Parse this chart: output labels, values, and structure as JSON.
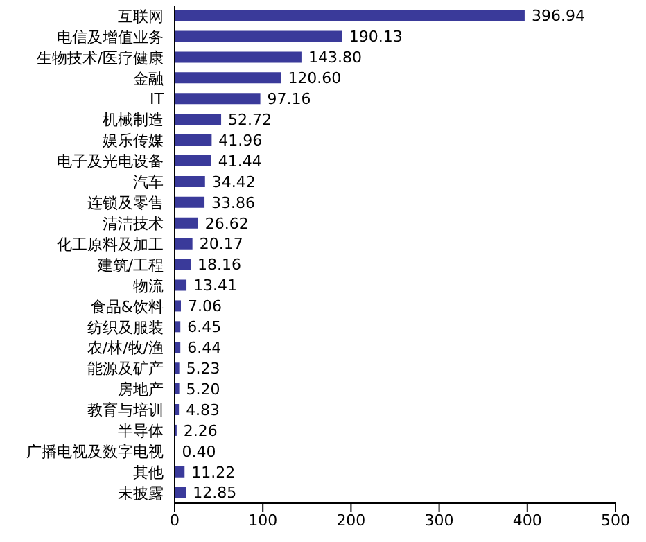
{
  "chart_data": {
    "type": "bar",
    "orientation": "horizontal",
    "categories": [
      "互联网",
      "电信及增值业务",
      "生物技术/医疗健康",
      "金融",
      "IT",
      "机械制造",
      "娱乐传媒",
      "电子及光电设备",
      "汽车",
      "连锁及零售",
      "清洁技术",
      "化工原料及加工",
      "建筑/工程",
      "物流",
      "食品&饮料",
      "纺织及服装",
      "农/林/牧/渔",
      "能源及矿产",
      "房地产",
      "教育与培训",
      "半导体",
      "广播电视及数字电视",
      "其他",
      "未披露"
    ],
    "values": [
      396.94,
      190.13,
      143.8,
      120.6,
      97.16,
      52.72,
      41.96,
      41.44,
      34.42,
      33.86,
      26.62,
      20.17,
      18.16,
      13.41,
      7.06,
      6.45,
      6.44,
      5.23,
      5.2,
      4.83,
      2.26,
      0.4,
      11.22,
      12.85
    ],
    "value_labels": [
      "396.94",
      "190.13",
      "143.80",
      "120.60",
      "97.16",
      "52.72",
      "41.96",
      "41.44",
      "34.42",
      "33.86",
      "26.62",
      "20.17",
      "18.16",
      "13.41",
      "7.06",
      "6.45",
      "6.44",
      "5.23",
      "5.20",
      "4.83",
      "2.26",
      "0.40",
      "11.22",
      "12.85"
    ],
    "color": "#3a3a9a",
    "xlim": [
      0,
      500
    ],
    "xticks": [
      0,
      100,
      200,
      300,
      400,
      500
    ],
    "grid": false,
    "legend": false
  }
}
